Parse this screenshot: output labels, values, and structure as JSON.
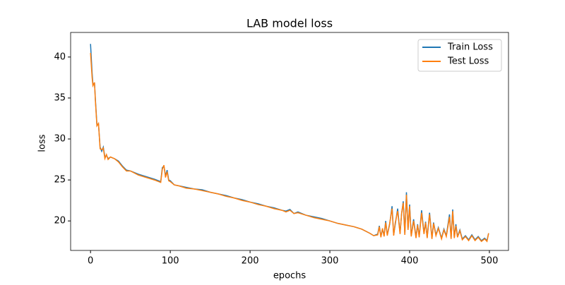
{
  "chart_data": {
    "type": "line",
    "title": "LAB model loss",
    "x_label": "epochs",
    "y_label": "loss",
    "x": [
      0,
      2,
      3,
      5,
      6,
      8,
      10,
      12,
      14,
      16,
      18,
      20,
      22,
      25,
      30,
      35,
      40,
      45,
      50,
      60,
      70,
      80,
      88,
      90,
      92,
      94,
      96,
      98,
      100,
      105,
      110,
      120,
      130,
      140,
      150,
      160,
      170,
      180,
      190,
      200,
      210,
      220,
      230,
      240,
      245,
      250,
      255,
      260,
      270,
      280,
      290,
      300,
      310,
      320,
      330,
      340,
      350,
      355,
      360,
      362,
      364,
      366,
      368,
      370,
      372,
      375,
      378,
      380,
      382,
      385,
      388,
      390,
      392,
      394,
      396,
      398,
      400,
      402,
      405,
      408,
      410,
      412,
      415,
      418,
      420,
      422,
      425,
      428,
      430,
      433,
      436,
      440,
      443,
      446,
      450,
      452,
      454,
      456,
      458,
      460,
      463,
      466,
      470,
      474,
      478,
      482,
      486,
      490,
      494,
      497,
      499
    ],
    "series": [
      {
        "name": "Train Loss",
        "color": "#1f77b4",
        "values": [
          41.6,
          38,
          36.7,
          36.8,
          35,
          31.8,
          31.8,
          29,
          28.5,
          29,
          27.8,
          28,
          27.6,
          27.8,
          27.6,
          27.3,
          26.7,
          26.2,
          26.1,
          25.7,
          25.4,
          25.1,
          24.8,
          26.5,
          26.7,
          25.5,
          26.2,
          25,
          24.9,
          24.4,
          24.3,
          24.1,
          23.9,
          23.8,
          23.5,
          23.3,
          23.1,
          22.8,
          22.6,
          22.3,
          22.1,
          21.8,
          21.6,
          21.3,
          21.2,
          21.4,
          20.9,
          21.1,
          20.7,
          20.5,
          20.3,
          20.0,
          19.7,
          19.5,
          19.3,
          19.0,
          18.5,
          18.2,
          18.4,
          19.4,
          18.1,
          19.0,
          18.2,
          20.0,
          18.3,
          19.6,
          21.8,
          18.3,
          19.6,
          21.5,
          18.5,
          20.9,
          22.4,
          18.4,
          23.5,
          19.0,
          22.0,
          18.2,
          20.2,
          18.0,
          19.6,
          18.1,
          21.3,
          18.5,
          19.9,
          18.0,
          21.0,
          17.9,
          19.8,
          18.3,
          19.2,
          17.9,
          19.0,
          18.2,
          20.8,
          17.9,
          21.4,
          18.0,
          19.6,
          18.1,
          18.9,
          17.8,
          18.2,
          17.7,
          18.3,
          17.7,
          18.1,
          17.6,
          17.9,
          17.6,
          18.5
        ]
      },
      {
        "name": "Test Loss",
        "color": "#ff7f0e",
        "values": [
          40.5,
          37.5,
          36.5,
          36.9,
          34.8,
          31.6,
          31.9,
          28.8,
          28.7,
          28.9,
          27.6,
          28.1,
          27.5,
          27.8,
          27.6,
          27.2,
          26.6,
          26.1,
          26.1,
          25.6,
          25.3,
          25.0,
          24.7,
          26.3,
          26.8,
          25.3,
          26.0,
          24.9,
          24.8,
          24.4,
          24.3,
          24.0,
          23.9,
          23.7,
          23.5,
          23.3,
          23.0,
          22.8,
          22.5,
          22.3,
          22.0,
          21.8,
          21.5,
          21.3,
          21.1,
          21.3,
          20.9,
          21.0,
          20.7,
          20.4,
          20.2,
          20.0,
          19.7,
          19.5,
          19.3,
          19.0,
          18.5,
          18.2,
          18.3,
          19.3,
          18.0,
          19.1,
          18.1,
          19.8,
          18.2,
          19.7,
          21.5,
          18.2,
          19.8,
          21.2,
          18.4,
          21.0,
          22.2,
          18.3,
          23.2,
          18.9,
          21.8,
          18.1,
          20.0,
          17.9,
          19.5,
          18.0,
          21.0,
          18.4,
          19.8,
          17.9,
          20.8,
          17.8,
          19.7,
          18.2,
          19.1,
          17.8,
          18.9,
          18.1,
          20.5,
          17.8,
          21.2,
          17.9,
          19.4,
          18.0,
          18.8,
          17.7,
          18.1,
          17.6,
          18.2,
          17.6,
          18.0,
          17.5,
          17.8,
          17.5,
          18.5
        ]
      }
    ],
    "xlim": [
      -24.95,
      523.95
    ],
    "xticks": [
      0,
      100,
      200,
      300,
      400,
      500
    ],
    "ylim": [
      16.4,
      43
    ],
    "yticks": [
      20,
      25,
      30,
      35,
      40
    ],
    "grid": false,
    "legend": "upper right"
  }
}
